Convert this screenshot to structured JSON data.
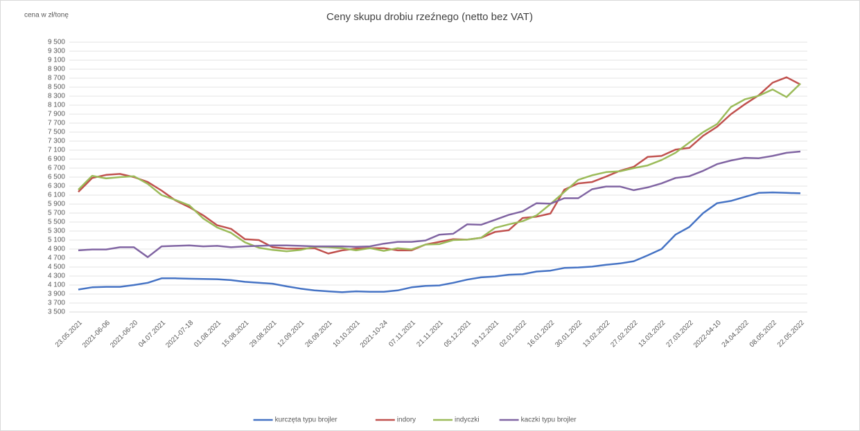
{
  "chart_data": {
    "type": "line",
    "title": "Ceny skupu drobiu rzeźnego (netto bez VAT)",
    "y_label": "cena w zł/tonę",
    "categories": [
      "23.05.2021",
      null,
      "2021-06-06",
      null,
      "2021-06-20",
      null,
      "04.07.2021",
      null,
      "2021-07-18",
      null,
      "01.08.2021",
      null,
      "15.08.2021",
      null,
      "29.08.2021",
      null,
      "12.09.2021",
      null,
      "26.09.2021",
      null,
      "10.10.2021",
      null,
      "2021-10-24",
      null,
      "07.11.2021",
      null,
      "21.11.2021",
      null,
      "05.12.2021",
      null,
      "19.12.2021",
      null,
      "02.01.2022",
      null,
      "16.01.2022",
      null,
      "30.01.2022",
      null,
      "13.02.2022",
      null,
      "27.02.2022",
      null,
      "13.03.2022",
      null,
      "27.03.2022",
      null,
      "2022-04-10",
      null,
      "24.04.2022",
      null,
      "08.05.2022",
      null,
      "22.05.2022"
    ],
    "series": [
      {
        "name": "kurczęta typu brojler",
        "color": "#4472c4",
        "values": [
          4000,
          4050,
          4060,
          4060,
          4100,
          4150,
          4250,
          4250,
          4240,
          4235,
          4230,
          4210,
          4170,
          4150,
          4130,
          4070,
          4020,
          3980,
          3960,
          3940,
          3960,
          3950,
          3950,
          3980,
          4050,
          4080,
          4090,
          4150,
          4220,
          4270,
          4290,
          4330,
          4340,
          4400,
          4420,
          4480,
          4490,
          4510,
          4550,
          4580,
          4630,
          4760,
          4900,
          5220,
          5390,
          5700,
          5920,
          5970,
          6060,
          6150,
          6160,
          6150,
          6140
        ]
      },
      {
        "name": "indory",
        "color": "#c0504d",
        "values": [
          6170,
          6480,
          6550,
          6570,
          6500,
          6390,
          6200,
          5980,
          5830,
          5650,
          5430,
          5350,
          5120,
          5100,
          4940,
          4910,
          4910,
          4920,
          4800,
          4870,
          4910,
          4920,
          4920,
          4870,
          4870,
          5000,
          5060,
          5120,
          5110,
          5150,
          5280,
          5320,
          5590,
          5620,
          5690,
          6220,
          6360,
          6390,
          6510,
          6640,
          6730,
          6950,
          6970,
          7110,
          7150,
          7420,
          7620,
          7900,
          8120,
          8320,
          8600,
          8720,
          8560
        ]
      },
      {
        "name": "indyczki",
        "color": "#9bbb59",
        "values": [
          6220,
          6530,
          6470,
          6500,
          6520,
          6350,
          6100,
          5990,
          5870,
          5580,
          5380,
          5260,
          5050,
          4930,
          4880,
          4850,
          4880,
          4950,
          4940,
          4920,
          4870,
          4920,
          4860,
          4920,
          4890,
          5000,
          5010,
          5100,
          5110,
          5150,
          5370,
          5450,
          5520,
          5650,
          5900,
          6170,
          6440,
          6540,
          6610,
          6630,
          6700,
          6760,
          6880,
          7040,
          7270,
          7500,
          7680,
          8060,
          8230,
          8310,
          8450,
          8280,
          8580
        ]
      },
      {
        "name": "kaczki typu brojler",
        "color": "#8064a2",
        "values": [
          4870,
          4890,
          4890,
          4940,
          4940,
          4720,
          4960,
          4970,
          4980,
          4960,
          4970,
          4940,
          4960,
          4970,
          4980,
          4980,
          4970,
          4960,
          4960,
          4960,
          4950,
          4960,
          5020,
          5060,
          5060,
          5090,
          5220,
          5240,
          5450,
          5440,
          5550,
          5660,
          5740,
          5920,
          5910,
          6030,
          6030,
          6230,
          6290,
          6290,
          6210,
          6270,
          6360,
          6480,
          6520,
          6640,
          6790,
          6870,
          6930,
          6920,
          6970,
          7040,
          7070
        ]
      }
    ],
    "ylim": [
      3500,
      9500
    ],
    "yticks": [
      {
        "value": 3500,
        "label": "3 500"
      },
      {
        "value": 3700,
        "label": "3 700"
      },
      {
        "value": 3900,
        "label": "3 900"
      },
      {
        "value": 4100,
        "label": "4 100"
      },
      {
        "value": 4300,
        "label": "4 300"
      },
      {
        "value": 4500,
        "label": "4 500"
      },
      {
        "value": 4700,
        "label": "4 700"
      },
      {
        "value": 4900,
        "label": "4 900"
      },
      {
        "value": 5100,
        "label": "5 100"
      },
      {
        "value": 5300,
        "label": "5 300"
      },
      {
        "value": 5500,
        "label": "5 500"
      },
      {
        "value": 5700,
        "label": "5 700"
      },
      {
        "value": 5900,
        "label": "5 900"
      },
      {
        "value": 6100,
        "label": "6 100"
      },
      {
        "value": 6300,
        "label": "6 300"
      },
      {
        "value": 6500,
        "label": "6 500"
      },
      {
        "value": 6700,
        "label": "6 700"
      },
      {
        "value": 6900,
        "label": "6 900"
      },
      {
        "value": 7100,
        "label": "7 100"
      },
      {
        "value": 7300,
        "label": "7 300"
      },
      {
        "value": 7500,
        "label": "7 500"
      },
      {
        "value": 7700,
        "label": "7 700"
      },
      {
        "value": 7900,
        "label": "7 900"
      },
      {
        "value": 8100,
        "label": "8 100"
      },
      {
        "value": 8300,
        "label": "8 300"
      },
      {
        "value": 8500,
        "label": "8 500"
      },
      {
        "value": 8700,
        "label": "8 700"
      },
      {
        "value": 8900,
        "label": "8 900"
      },
      {
        "value": 9100,
        "label": "9 100"
      },
      {
        "value": 9300,
        "label": "9 300"
      },
      {
        "value": 9500,
        "label": "9 500"
      }
    ],
    "grid": true,
    "legend": "bottom"
  }
}
